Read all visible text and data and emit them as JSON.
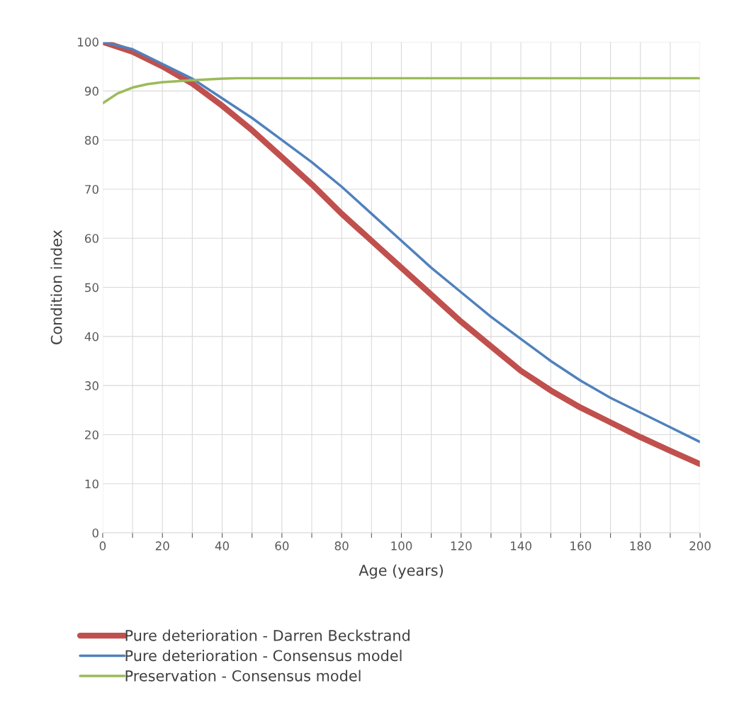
{
  "chart_data": {
    "type": "line",
    "xlabel": "Age (years)",
    "ylabel": "Condition index",
    "xlim": [
      0,
      200
    ],
    "ylim": [
      0,
      100
    ],
    "xticks": [
      0,
      {
        "value": 10,
        "label": null
      },
      20,
      {
        "value": 30,
        "label": null
      },
      40,
      {
        "value": 50,
        "label": null
      },
      60,
      {
        "value": 70,
        "label": null
      },
      80,
      {
        "value": 90,
        "label": null
      },
      100,
      {
        "value": 110,
        "label": null
      },
      120,
      {
        "value": 130,
        "label": null
      },
      140,
      {
        "value": 150,
        "label": null
      },
      160,
      {
        "value": 170,
        "label": null
      },
      180,
      {
        "value": 190,
        "label": null
      },
      200
    ],
    "yticks": [
      0,
      10,
      20,
      30,
      40,
      50,
      60,
      70,
      80,
      90,
      100
    ],
    "grid": true,
    "legend": "bottom",
    "marker": "none",
    "line_style": "solid",
    "series": [
      {
        "name": "Pure deterioration - Darren Beckstrand",
        "color": "#c0504d",
        "x": [
          0,
          10,
          20,
          30,
          40,
          50,
          60,
          70,
          80,
          90,
          100,
          110,
          120,
          130,
          140,
          150,
          160,
          170,
          180,
          190,
          200
        ],
        "values": [
          100,
          98,
          95,
          91.5,
          87,
          82,
          76.5,
          71,
          65,
          59.5,
          54,
          48.5,
          43,
          38,
          33,
          29,
          25.5,
          22.5,
          19.5,
          16.7,
          14
        ]
      },
      {
        "name": "Pure deterioration - Consensus model",
        "color": "#4f81bd",
        "x": [
          0,
          10,
          20,
          30,
          40,
          50,
          60,
          70,
          80,
          90,
          100,
          110,
          120,
          130,
          140,
          150,
          160,
          170,
          180,
          190,
          200
        ],
        "values": [
          100,
          98.5,
          95.5,
          92.5,
          88.5,
          84.5,
          80,
          75.5,
          70.5,
          65,
          59.5,
          54,
          49,
          44,
          39.5,
          35,
          31,
          27.5,
          24.5,
          21.5,
          18.5
        ]
      },
      {
        "name": "Preservation - Consensus model",
        "color": "#9bbb59",
        "x": [
          0,
          5,
          10,
          15,
          20,
          30,
          40,
          45,
          200
        ],
        "values": [
          87.5,
          89.5,
          90.7,
          91.4,
          91.8,
          92.2,
          92.5,
          92.6,
          92.6
        ]
      }
    ]
  }
}
